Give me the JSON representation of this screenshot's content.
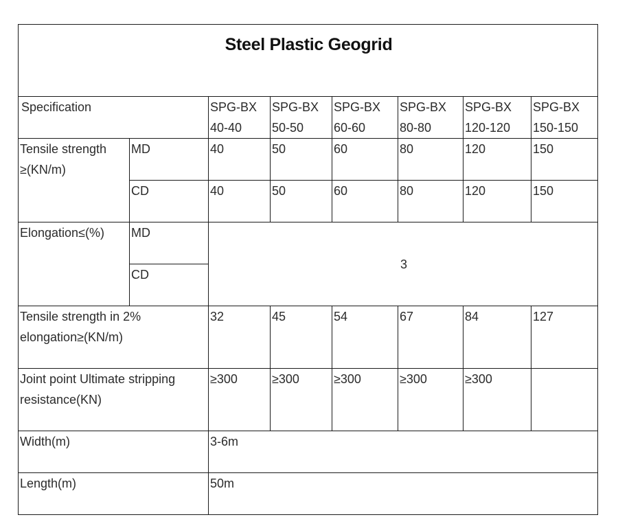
{
  "title": "Steel Plastic Geogrid",
  "spec_label": "Specification",
  "models": [
    {
      "line1": "SPG-BX",
      "line2": "40-40"
    },
    {
      "line1": "SPG-BX",
      "line2": "50-50"
    },
    {
      "line1": "SPG-BX",
      "line2": "60-60"
    },
    {
      "line1": "SPG-BX",
      "line2": "80-80"
    },
    {
      "line1": "SPG-BX",
      "line2": "120-120"
    },
    {
      "line1": "SPG-BX",
      "line2": "150-150"
    }
  ],
  "tensile": {
    "label_line1": "Tensile strength",
    "label_line2": "≥(KN/m)",
    "md_label": "MD",
    "cd_label": "CD",
    "md": [
      "40",
      "50",
      "60",
      "80",
      "120",
      "150"
    ],
    "cd": [
      "40",
      "50",
      "60",
      "80",
      "120",
      "150"
    ]
  },
  "elongation": {
    "label": "Elongation≤(%)",
    "md_label": "MD",
    "cd_label": "CD",
    "value": "3"
  },
  "tensile_2pct": {
    "label_line1": "Tensile strength in 2%",
    "label_line2": "elongation≥(KN/m)",
    "values": [
      "32",
      "45",
      "54",
      "67",
      "84",
      "127"
    ]
  },
  "joint": {
    "label_line1": "Joint point Ultimate stripping",
    "label_line2": "resistance(KN)",
    "values": [
      "≥300",
      "≥300",
      "≥300",
      "≥300",
      "≥300",
      ""
    ]
  },
  "width": {
    "label": "Width(m)",
    "value": "3-6m"
  },
  "length": {
    "label": "Length(m)",
    "value": "50m"
  }
}
